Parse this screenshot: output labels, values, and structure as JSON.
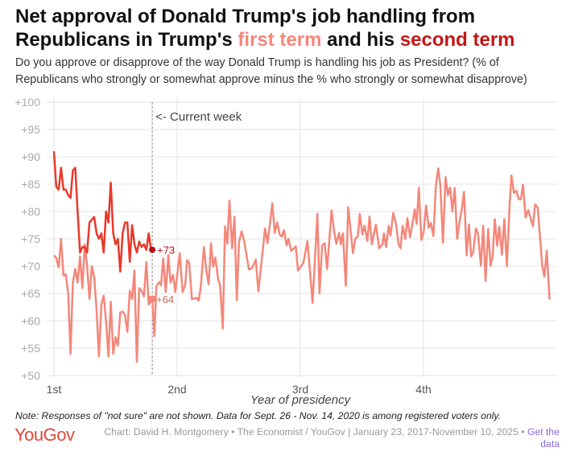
{
  "title": {
    "part1": "Net approval of Donald Trump's job handling from Republicans in Trump's ",
    "first_term": "first term",
    "part2": " and his ",
    "second_term": "second term"
  },
  "subtitle": "Do you approve or disapprove of the way Donald Trump is handling his job as President? (% of Republicans who strongly or somewhat approve minus the % who strongly or somewhat disapprove)",
  "note": "Note: Responses of \"not sure\" are not shown. Data for Sept. 26 - Nov. 14, 2020 is among registered voters only.",
  "footer": {
    "logo": "YouGov",
    "credit": "Chart: David H. Montgomery • The Economist / YouGov | January 23, 2017-November 10, 2025 • ",
    "link": "Get the data"
  },
  "chart_data": {
    "type": "line",
    "xlabel": "Year of presidency",
    "x_unit": "weeks since inauguration",
    "xlim": [
      0,
      209
    ],
    "ylim": [
      50,
      100
    ],
    "yticks": [
      {
        "v": 50,
        "label": "+50"
      },
      {
        "v": 55,
        "label": "+55"
      },
      {
        "v": 60,
        "label": "+60"
      },
      {
        "v": 65,
        "label": "+65"
      },
      {
        "v": 70,
        "label": "+70"
      },
      {
        "v": 75,
        "label": "+75"
      },
      {
        "v": 80,
        "label": "+80"
      },
      {
        "v": 85,
        "label": "+85"
      },
      {
        "v": 90,
        "label": "+90"
      },
      {
        "v": 95,
        "label": "+95"
      },
      {
        "v": 100,
        "label": "+100"
      }
    ],
    "xticks": [
      {
        "v": 0,
        "label": "1st"
      },
      {
        "v": 52,
        "label": "2nd"
      },
      {
        "v": 104,
        "label": "3rd"
      },
      {
        "v": 156,
        "label": "4th"
      }
    ],
    "current_week": {
      "x": 41.5,
      "label": "<- Current week"
    },
    "colors": {
      "first_term": "#f4877a",
      "second_term": "#e8392b",
      "marker": "#b5121b",
      "grid": "#e3e3e3"
    },
    "series": [
      {
        "name": "First term",
        "end_label": "+64",
        "points": [
          [
            0,
            72
          ],
          [
            1,
            71.5
          ],
          [
            2,
            69.8
          ],
          [
            3,
            75
          ],
          [
            4,
            68.3
          ],
          [
            5,
            68.5
          ],
          [
            6,
            65
          ],
          [
            7,
            54
          ],
          [
            8,
            67
          ],
          [
            9,
            69.5
          ],
          [
            10,
            67
          ],
          [
            11,
            71.8
          ],
          [
            12,
            66
          ],
          [
            13,
            74
          ],
          [
            14,
            70
          ],
          [
            15,
            64
          ],
          [
            16,
            70
          ],
          [
            17,
            68
          ],
          [
            18,
            62
          ],
          [
            19,
            53.5
          ],
          [
            20,
            63
          ],
          [
            21,
            64.6
          ],
          [
            22,
            60
          ],
          [
            23,
            53.5
          ],
          [
            24,
            63.5
          ],
          [
            25,
            54
          ],
          [
            26,
            57
          ],
          [
            27,
            55.5
          ],
          [
            28,
            61.5
          ],
          [
            29,
            61.7
          ],
          [
            30,
            61
          ],
          [
            31,
            58
          ],
          [
            32,
            65.5
          ],
          [
            33,
            64
          ],
          [
            34,
            69.2
          ],
          [
            35,
            52.5
          ],
          [
            36,
            66
          ],
          [
            37,
            65.5
          ],
          [
            38,
            64.5
          ],
          [
            39,
            70.8
          ],
          [
            40,
            63
          ],
          [
            41.5,
            64
          ],
          [
            42.4,
            57.2
          ],
          [
            43.2,
            66.2
          ],
          [
            44.4,
            67.1
          ],
          [
            45.2,
            66.5
          ],
          [
            46.1,
            71.4
          ],
          [
            47.2,
            65.3
          ],
          [
            48.3,
            72
          ],
          [
            49.2,
            67
          ],
          [
            50.3,
            68.4
          ],
          [
            51.2,
            65.3
          ],
          [
            53.1,
            72.4
          ],
          [
            54.3,
            65.3
          ],
          [
            55.4,
            66.5
          ],
          [
            56.2,
            71.1
          ],
          [
            57.1,
            70.6
          ],
          [
            58.2,
            64
          ],
          [
            60.3,
            64.2
          ],
          [
            61.1,
            63.7
          ],
          [
            62,
            66.2
          ],
          [
            63.3,
            73.5
          ],
          [
            64.3,
            69.3
          ],
          [
            65.3,
            66.7
          ],
          [
            66.3,
            74.2
          ],
          [
            67.2,
            69.9
          ],
          [
            68.1,
            71.6
          ],
          [
            69.3,
            67.7
          ],
          [
            70.1,
            66.5
          ],
          [
            71.3,
            58.6
          ],
          [
            72.2,
            77.3
          ],
          [
            73.2,
            74.1
          ],
          [
            74.1,
            82
          ],
          [
            75.2,
            73.3
          ],
          [
            76.2,
            79
          ],
          [
            77.2,
            63.8
          ],
          [
            78.1,
            74.3
          ],
          [
            79.2,
            76.4
          ],
          [
            80.3,
            74.6
          ],
          [
            82.3,
            69.4
          ],
          [
            83.7,
            69.7
          ],
          [
            85.2,
            71.2
          ],
          [
            86.3,
            65.4
          ],
          [
            87.7,
            71.1
          ],
          [
            89.1,
            76.9
          ],
          [
            90.2,
            74.2
          ],
          [
            92.2,
            81.5
          ],
          [
            93.2,
            76.1
          ],
          [
            94.2,
            78
          ],
          [
            95.3,
            75.8
          ],
          [
            96.2,
            75.4
          ],
          [
            97.1,
            76.6
          ],
          [
            98.2,
            73.8
          ],
          [
            99,
            75
          ],
          [
            100.2,
            72.8
          ],
          [
            102.1,
            73.6
          ],
          [
            103,
            69.2
          ],
          [
            105.3,
            70.6
          ],
          [
            107,
            74.6
          ],
          [
            109.2,
            63.3
          ],
          [
            111.2,
            79.6
          ],
          [
            112.1,
            65
          ],
          [
            113.2,
            73.8
          ],
          [
            114.3,
            74.2
          ],
          [
            115.3,
            69.5
          ],
          [
            117.2,
            80.2
          ],
          [
            118.3,
            76.3
          ],
          [
            119.2,
            74.1
          ],
          [
            120.4,
            76.1
          ],
          [
            121.1,
            74
          ],
          [
            122,
            76
          ],
          [
            123.2,
            66.4
          ],
          [
            124.2,
            80.8
          ],
          [
            126.2,
            72.4
          ],
          [
            127.2,
            75
          ],
          [
            128.3,
            75.5
          ],
          [
            129.1,
            79.6
          ],
          [
            130.2,
            75.8
          ],
          [
            131.1,
            77.4
          ],
          [
            132.3,
            74.6
          ],
          [
            133.2,
            79.1
          ],
          [
            134.2,
            74
          ],
          [
            135.9,
            77.6
          ],
          [
            137.3,
            73.3
          ],
          [
            138.7,
            74
          ],
          [
            139.3,
            76
          ],
          [
            140.2,
            73.5
          ],
          [
            141.3,
            77.4
          ],
          [
            142.1,
            75.6
          ],
          [
            143.2,
            79.7
          ],
          [
            144.4,
            77.7
          ],
          [
            145.5,
            74
          ],
          [
            146.3,
            73.3
          ],
          [
            147.2,
            77.4
          ],
          [
            148.3,
            75
          ],
          [
            149.2,
            78.8
          ],
          [
            150.3,
            75.3
          ],
          [
            151.2,
            77.5
          ],
          [
            152.3,
            80.4
          ],
          [
            153.1,
            77.7
          ],
          [
            154,
            84.3
          ],
          [
            155.1,
            74.8
          ],
          [
            156.1,
            76.3
          ],
          [
            157.1,
            81.1
          ],
          [
            158.2,
            77
          ],
          [
            159.1,
            77.9
          ],
          [
            160.2,
            75.5
          ],
          [
            161.2,
            84.5
          ],
          [
            162.2,
            87.9
          ],
          [
            163.1,
            84.9
          ],
          [
            164.2,
            74.3
          ],
          [
            165.3,
            86.3
          ],
          [
            166.3,
            83
          ],
          [
            167.2,
            84.4
          ],
          [
            168.2,
            80
          ],
          [
            169.2,
            84.3
          ],
          [
            170.2,
            75
          ],
          [
            171.4,
            78.7
          ],
          [
            172.1,
            80.2
          ],
          [
            173.1,
            83.6
          ],
          [
            174.2,
            72
          ],
          [
            175.2,
            77.6
          ],
          [
            176.1,
            71.8
          ],
          [
            177,
            72.6
          ],
          [
            178.1,
            76.9
          ],
          [
            179,
            76
          ],
          [
            180.2,
            70.1
          ],
          [
            181.2,
            77.4
          ],
          [
            182.2,
            67.3
          ],
          [
            183.3,
            76.8
          ],
          [
            184.3,
            70.1
          ],
          [
            185.2,
            71.9
          ],
          [
            186.1,
            78.6
          ],
          [
            187.1,
            73.7
          ],
          [
            188,
            77.2
          ],
          [
            189.1,
            72.1
          ],
          [
            190.1,
            78.6
          ],
          [
            191.2,
            70
          ],
          [
            192.3,
            80.9
          ],
          [
            193.1,
            86.6
          ],
          [
            194.2,
            83.4
          ],
          [
            195.2,
            83.8
          ],
          [
            196.2,
            82.3
          ],
          [
            197.1,
            82.2
          ],
          [
            198,
            84.9
          ],
          [
            199.1,
            78.9
          ],
          [
            200.2,
            80.3
          ],
          [
            202.2,
            77.3
          ],
          [
            203.1,
            81.3
          ],
          [
            204.2,
            80.7
          ],
          [
            206.1,
            70.1
          ],
          [
            207,
            68.1
          ],
          [
            208,
            72.8
          ],
          [
            209.2,
            63.9
          ]
        ]
      },
      {
        "name": "Second term",
        "end_label": "+73",
        "points": [
          [
            0,
            91
          ],
          [
            1,
            84.5
          ],
          [
            2,
            84
          ],
          [
            3,
            88
          ],
          [
            4,
            84
          ],
          [
            5,
            84
          ],
          [
            6,
            83
          ],
          [
            7,
            82.5
          ],
          [
            8,
            87.5
          ],
          [
            9,
            88
          ],
          [
            10,
            80
          ],
          [
            11,
            72.5
          ],
          [
            12,
            73.5
          ],
          [
            13,
            73.5
          ],
          [
            14,
            72.5
          ],
          [
            15,
            78
          ],
          [
            16,
            78.5
          ],
          [
            17,
            79
          ],
          [
            18,
            76
          ],
          [
            19,
            75
          ],
          [
            20,
            76
          ],
          [
            21,
            72.5
          ],
          [
            22,
            80
          ],
          [
            23,
            78
          ],
          [
            24,
            85.3
          ],
          [
            25,
            76
          ],
          [
            26,
            74
          ],
          [
            27,
            75
          ],
          [
            28,
            69
          ],
          [
            29,
            76
          ],
          [
            30,
            78
          ],
          [
            31,
            78
          ],
          [
            32,
            70.8
          ],
          [
            33,
            77.5
          ],
          [
            34,
            74
          ],
          [
            35,
            72.5
          ],
          [
            36,
            74.5
          ],
          [
            37,
            73.5
          ],
          [
            38,
            74
          ],
          [
            39,
            73
          ],
          [
            40,
            76
          ],
          [
            41,
            73
          ],
          [
            41.5,
            73
          ]
        ]
      }
    ]
  }
}
